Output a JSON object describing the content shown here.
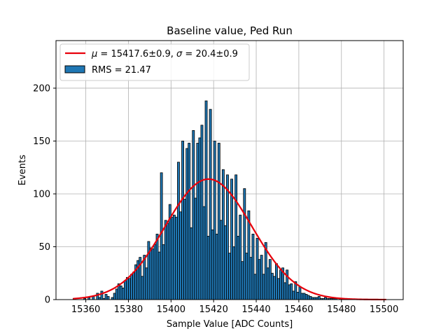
{
  "chart_data": {
    "type": "bar",
    "title": "Baseline value, Ped Run",
    "xlabel": "Sample Value [ADC Counts]",
    "ylabel": "Events",
    "xlim": [
      15346,
      15509
    ],
    "ylim": [
      0,
      245
    ],
    "grid": true,
    "legend_position": "top-left",
    "x_ticks": [
      15360,
      15380,
      15400,
      15420,
      15440,
      15460,
      15480,
      15500
    ],
    "y_ticks": [
      0,
      50,
      100,
      150,
      200
    ],
    "bin_width": 1,
    "histogram": {
      "name": "RMS = 21.47",
      "color": "#1f77b4",
      "edgecolor": "#000000",
      "bin_start": 15354,
      "values": [
        1,
        0,
        0,
        0,
        0,
        1,
        0,
        2,
        0,
        3,
        0,
        6,
        2,
        8,
        1,
        5,
        3,
        0,
        2,
        6,
        10,
        15,
        13,
        11,
        18,
        21,
        20,
        24,
        26,
        33,
        37,
        40,
        22,
        42,
        30,
        55,
        49,
        48,
        52,
        62,
        45,
        120,
        52,
        75,
        72,
        90,
        78,
        80,
        78,
        130,
        83,
        150,
        95,
        143,
        148,
        68,
        160,
        96,
        148,
        153,
        165,
        88,
        188,
        60,
        180,
        66,
        150,
        62,
        148,
        75,
        123,
        70,
        118,
        44,
        114,
        50,
        118,
        60,
        80,
        36,
        105,
        44,
        84,
        40,
        62,
        24,
        58,
        38,
        42,
        24,
        54,
        30,
        38,
        25,
        22,
        34,
        20,
        28,
        30,
        16,
        28,
        14,
        15,
        8,
        17,
        7,
        12,
        6,
        6,
        5,
        4,
        3,
        2,
        2,
        2,
        3,
        1,
        1,
        2,
        1,
        1,
        1,
        1,
        1,
        0,
        1,
        0,
        1,
        0,
        0,
        0,
        0,
        0,
        0,
        0,
        0,
        0,
        0,
        0,
        0,
        0,
        0,
        0,
        0,
        0,
        0,
        0
      ]
    },
    "fit": {
      "name": "μ = 15417.6±0.9, σ = 20.4±0.9",
      "name_parts": {
        "mu_symbol": "μ",
        "mu_value": " = 15417.6±0.9, ",
        "sigma_symbol": "σ",
        "sigma_value": " = 20.4±0.9"
      },
      "color": "#e8000b",
      "mu": 15417.6,
      "sigma": 20.4,
      "amplitude": 114,
      "x_range": [
        15354,
        15501
      ]
    }
  }
}
